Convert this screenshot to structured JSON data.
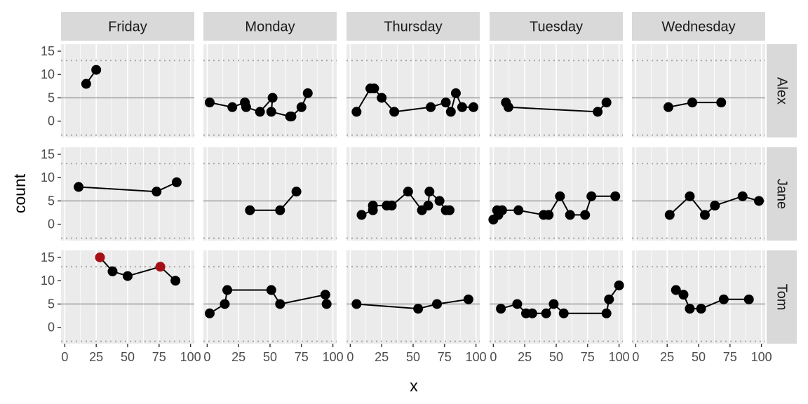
{
  "chart_data": {
    "type": "line",
    "xlabel": "x",
    "ylabel": "count",
    "xlim": [
      -3,
      103
    ],
    "ylim": [
      -3.5,
      16.5
    ],
    "x_ticks": [
      0,
      25,
      50,
      75,
      100
    ],
    "y_ticks": [
      0,
      5,
      10,
      15
    ],
    "x_tick_labels": [
      "0",
      "25",
      "50",
      "75",
      "100"
    ],
    "y_tick_labels": [
      "0",
      "5",
      "10",
      "15"
    ],
    "reference_lines": {
      "solid": 5,
      "dotted": [
        -3,
        13
      ]
    },
    "facet_columns": [
      "Friday",
      "Monday",
      "Thursday",
      "Tuesday",
      "Wednesday"
    ],
    "facet_rows": [
      "Alex",
      "Jane",
      "Tom"
    ],
    "colors": {
      "panel_bg": "#ebebeb",
      "strip_bg": "#d9d9d9",
      "grid": "#ffffff",
      "ref_line": "#a6a6a6",
      "point": "#000000",
      "highlight": "#a50f15"
    },
    "panels": [
      {
        "col": "Friday",
        "row": "Alex",
        "points": [
          [
            17,
            8
          ],
          [
            25,
            11
          ]
        ]
      },
      {
        "col": "Monday",
        "row": "Alex",
        "points": [
          [
            2,
            4
          ],
          [
            20,
            3
          ],
          [
            30,
            4
          ],
          [
            31,
            3
          ],
          [
            42,
            2
          ],
          [
            52,
            5
          ],
          [
            51,
            2
          ],
          [
            66,
            1
          ],
          [
            67,
            1
          ],
          [
            75,
            3
          ],
          [
            80,
            6
          ]
        ]
      },
      {
        "col": "Thursday",
        "row": "Alex",
        "points": [
          [
            5,
            2
          ],
          [
            16,
            7
          ],
          [
            19,
            7
          ],
          [
            25,
            5
          ],
          [
            35,
            2
          ],
          [
            64,
            3
          ],
          [
            76,
            4
          ],
          [
            80,
            2
          ],
          [
            84,
            6
          ],
          [
            89,
            3
          ],
          [
            98,
            3
          ]
        ]
      },
      {
        "col": "Tuesday",
        "row": "Alex",
        "points": [
          [
            10,
            4
          ],
          [
            12,
            3
          ],
          [
            83,
            2
          ],
          [
            90,
            4
          ]
        ]
      },
      {
        "col": "Wednesday",
        "row": "Alex",
        "points": [
          [
            26,
            3
          ],
          [
            45,
            4
          ],
          [
            68,
            4
          ]
        ]
      },
      {
        "col": "Friday",
        "row": "Jane",
        "points": [
          [
            11,
            8
          ],
          [
            73,
            7
          ],
          [
            89,
            9
          ]
        ]
      },
      {
        "col": "Monday",
        "row": "Jane",
        "points": [
          [
            34,
            3
          ],
          [
            58,
            3
          ],
          [
            71,
            7
          ]
        ]
      },
      {
        "col": "Thursday",
        "row": "Jane",
        "points": [
          [
            9,
            2
          ],
          [
            18,
            3
          ],
          [
            18,
            4
          ],
          [
            29,
            4
          ],
          [
            33,
            4
          ],
          [
            46,
            7
          ],
          [
            57,
            3
          ],
          [
            62,
            4
          ],
          [
            63,
            7
          ],
          [
            71,
            5
          ],
          [
            76,
            3
          ],
          [
            79,
            3
          ]
        ]
      },
      {
        "col": "Tuesday",
        "row": "Jane",
        "points": [
          [
            0,
            1
          ],
          [
            3,
            3
          ],
          [
            4,
            2
          ],
          [
            7,
            3
          ],
          [
            20,
            3
          ],
          [
            40,
            2
          ],
          [
            44,
            2
          ],
          [
            53,
            6
          ],
          [
            61,
            2
          ],
          [
            73,
            2
          ],
          [
            78,
            6
          ],
          [
            97,
            6
          ]
        ]
      },
      {
        "col": "Wednesday",
        "row": "Jane",
        "points": [
          [
            27,
            2
          ],
          [
            43,
            6
          ],
          [
            55,
            2
          ],
          [
            63,
            4
          ],
          [
            85,
            6
          ],
          [
            98,
            5
          ]
        ]
      },
      {
        "col": "Friday",
        "row": "Tom",
        "points": [
          [
            28,
            15
          ],
          [
            38,
            12
          ],
          [
            50,
            11
          ],
          [
            76,
            13
          ],
          [
            88,
            10
          ]
        ],
        "highlight": [
          0,
          3
        ]
      },
      {
        "col": "Monday",
        "row": "Tom",
        "points": [
          [
            2,
            3
          ],
          [
            14,
            5
          ],
          [
            16,
            8
          ],
          [
            51,
            8
          ],
          [
            58,
            5
          ],
          [
            94,
            7
          ],
          [
            95,
            5
          ]
        ]
      },
      {
        "col": "Thursday",
        "row": "Tom",
        "points": [
          [
            5,
            5
          ],
          [
            54,
            4
          ],
          [
            69,
            5
          ],
          [
            94,
            6
          ]
        ]
      },
      {
        "col": "Tuesday",
        "row": "Tom",
        "points": [
          [
            6,
            4
          ],
          [
            19,
            5
          ],
          [
            26,
            3
          ],
          [
            31,
            3
          ],
          [
            42,
            3
          ],
          [
            48,
            5
          ],
          [
            56,
            3
          ],
          [
            90,
            3
          ],
          [
            92,
            6
          ],
          [
            100,
            9
          ]
        ]
      },
      {
        "col": "Wednesday",
        "row": "Tom",
        "points": [
          [
            32,
            8
          ],
          [
            38,
            7
          ],
          [
            43,
            4
          ],
          [
            52,
            4
          ],
          [
            70,
            6
          ],
          [
            90,
            6
          ]
        ]
      }
    ]
  }
}
